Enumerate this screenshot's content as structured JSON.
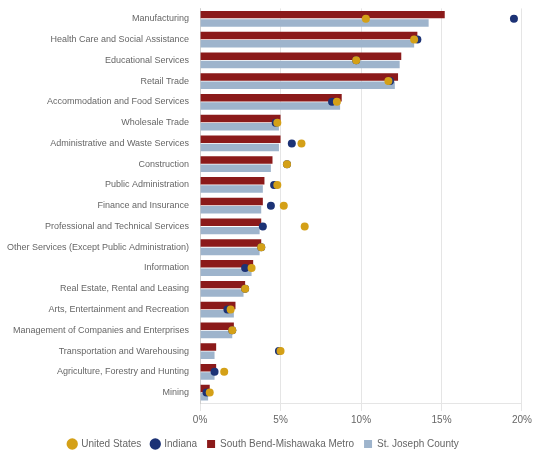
{
  "chart_data": {
    "type": "bar",
    "orientation": "horizontal",
    "categories": [
      "Manufacturing",
      "Health Care and Social Assistance",
      "Educational Services",
      "Retail Trade",
      "Accommodation and Food Services",
      "Wholesale Trade",
      "Administrative and Waste Services",
      "Construction",
      "Public Administration",
      "Finance and Insurance",
      "Professional and Technical Services",
      "Other Services (Except Public Administration)",
      "Information",
      "Real Estate, Rental and Leasing",
      "Arts, Entertainment and Recreation",
      "Management of Companies and Enterprises",
      "Transportation and Warehousing",
      "Agriculture, Forestry and Hunting",
      "Mining"
    ],
    "series": [
      {
        "name": "South Bend-Mishawaka Metro",
        "type": "bar",
        "color": "#8B1A1A",
        "values": [
          15.2,
          13.5,
          12.5,
          12.3,
          8.8,
          5.0,
          5.0,
          4.5,
          4.0,
          3.9,
          3.8,
          3.8,
          3.3,
          2.8,
          2.2,
          2.1,
          1.0,
          1.0,
          0.6
        ]
      },
      {
        "name": "St. Joseph County",
        "type": "bar",
        "color": "#9EB4CC",
        "values": [
          14.2,
          13.3,
          12.4,
          12.1,
          8.7,
          4.9,
          4.9,
          4.4,
          3.9,
          3.8,
          3.7,
          3.7,
          3.2,
          2.7,
          2.1,
          2.0,
          0.9,
          0.9,
          0.5
        ]
      },
      {
        "name": "United States",
        "type": "scatter",
        "marker": "circle",
        "color": "#D4A017",
        "values": [
          10.3,
          13.3,
          9.7,
          11.7,
          8.5,
          4.8,
          6.3,
          5.4,
          4.8,
          5.2,
          6.5,
          3.8,
          3.2,
          2.8,
          1.9,
          2.0,
          5.0,
          1.5,
          0.6
        ]
      },
      {
        "name": "Indiana",
        "type": "scatter",
        "marker": "circle",
        "color": "#1C3275",
        "values": [
          19.5,
          13.5,
          9.7,
          11.8,
          8.2,
          4.7,
          5.7,
          5.4,
          4.6,
          4.4,
          3.9,
          3.8,
          2.8,
          2.8,
          1.7,
          2.0,
          4.9,
          0.9,
          0.4
        ]
      }
    ],
    "xlim": [
      0,
      20
    ],
    "xticks": [
      {
        "value": 0,
        "label": "0%"
      },
      {
        "value": 5,
        "label": "5%"
      },
      {
        "value": 10,
        "label": "10%"
      },
      {
        "value": 15,
        "label": "15%"
      },
      {
        "value": 20,
        "label": "20%"
      }
    ],
    "grid": true,
    "legend": "bottom"
  }
}
